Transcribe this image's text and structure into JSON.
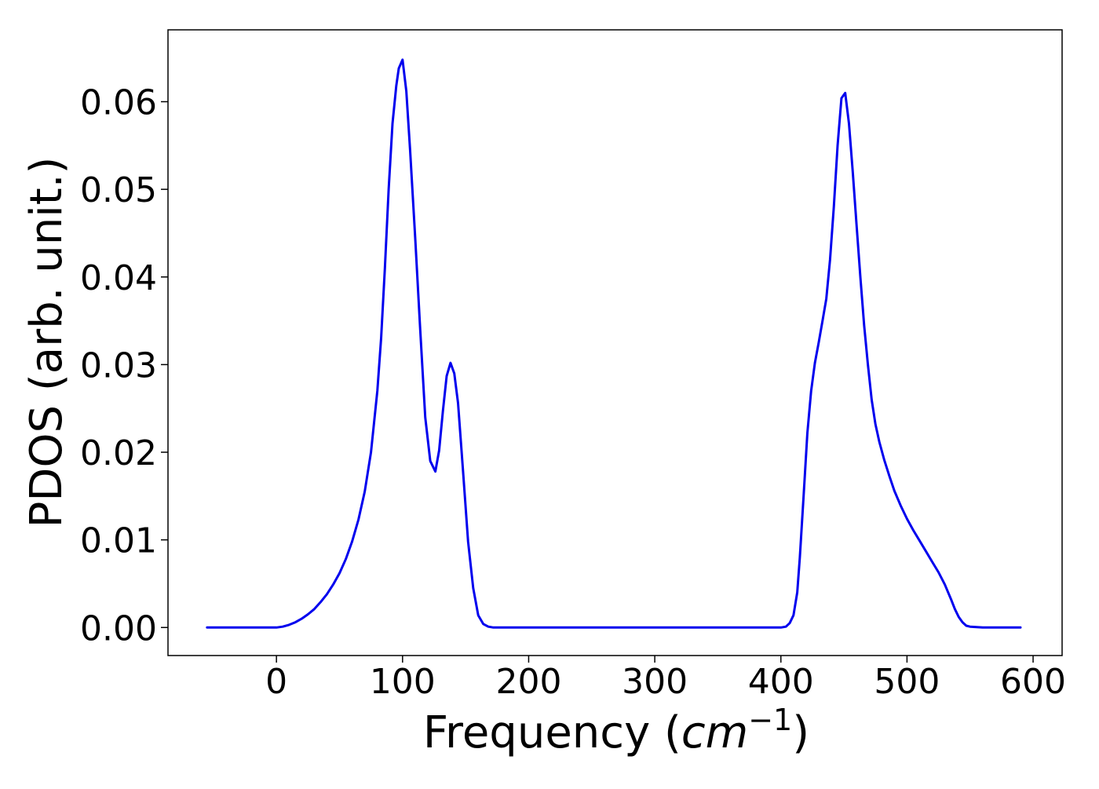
{
  "chart_data": {
    "type": "line",
    "xlabel": "Frequency (cm⁻¹)",
    "ylabel": "PDOS (arb. unit.)",
    "xlim": [
      -86,
      623
    ],
    "ylim": [
      -0.0032,
      0.0682
    ],
    "xticks": [
      0,
      100,
      200,
      300,
      400,
      500,
      600
    ],
    "xtick_labels": [
      "0",
      "100",
      "200",
      "300",
      "400",
      "500",
      "600"
    ],
    "yticks": [
      0.0,
      0.01,
      0.02,
      0.03,
      0.04,
      0.05,
      0.06
    ],
    "ytick_labels": [
      "0.00",
      "0.01",
      "0.02",
      "0.03",
      "0.04",
      "0.05",
      "0.06"
    ],
    "grid": false,
    "series": [
      {
        "color": "#0000ee",
        "x": [
          -55,
          -30,
          0,
          5,
          10,
          15,
          20,
          25,
          30,
          35,
          40,
          45,
          50,
          55,
          60,
          65,
          70,
          75,
          80,
          83,
          86,
          89,
          92,
          95,
          97,
          100,
          103,
          106,
          110,
          114,
          118,
          122,
          126,
          129,
          132,
          135,
          138,
          141,
          144,
          148,
          152,
          156,
          160,
          164,
          168,
          172,
          180,
          200,
          250,
          300,
          350,
          400,
          404,
          407,
          410,
          413,
          415,
          418,
          421,
          424,
          427,
          430,
          433,
          436,
          439,
          442,
          445,
          448,
          451,
          454,
          457,
          460,
          463,
          466,
          469,
          472,
          475,
          478,
          482,
          486,
          490,
          495,
          500,
          505,
          510,
          515,
          520,
          525,
          530,
          535,
          538,
          541,
          544,
          547,
          550,
          560,
          590
        ],
        "y": [
          0.0,
          0.0,
          0.0,
          0.0001,
          0.0003,
          0.0006,
          0.001,
          0.0015,
          0.0021,
          0.0029,
          0.0038,
          0.0049,
          0.0062,
          0.0078,
          0.0098,
          0.0123,
          0.0155,
          0.02,
          0.027,
          0.033,
          0.041,
          0.05,
          0.0575,
          0.0618,
          0.0638,
          0.0648,
          0.0612,
          0.0545,
          0.0445,
          0.034,
          0.024,
          0.019,
          0.0178,
          0.0202,
          0.0247,
          0.0287,
          0.0302,
          0.029,
          0.0256,
          0.0178,
          0.0098,
          0.0045,
          0.0014,
          0.0004,
          0.0001,
          0.0,
          0.0,
          0.0,
          0.0,
          0.0,
          0.0,
          0.0,
          0.0001,
          0.0005,
          0.0014,
          0.004,
          0.008,
          0.015,
          0.0222,
          0.027,
          0.0302,
          0.0325,
          0.035,
          0.0375,
          0.042,
          0.048,
          0.055,
          0.0604,
          0.061,
          0.0575,
          0.052,
          0.046,
          0.04,
          0.0345,
          0.03,
          0.026,
          0.0232,
          0.0212,
          0.0191,
          0.0173,
          0.0156,
          0.0139,
          0.0124,
          0.0111,
          0.0099,
          0.0087,
          0.0075,
          0.0063,
          0.0049,
          0.0032,
          0.0021,
          0.0012,
          0.0006,
          0.0002,
          0.0001,
          0.0,
          0.0
        ]
      }
    ]
  }
}
